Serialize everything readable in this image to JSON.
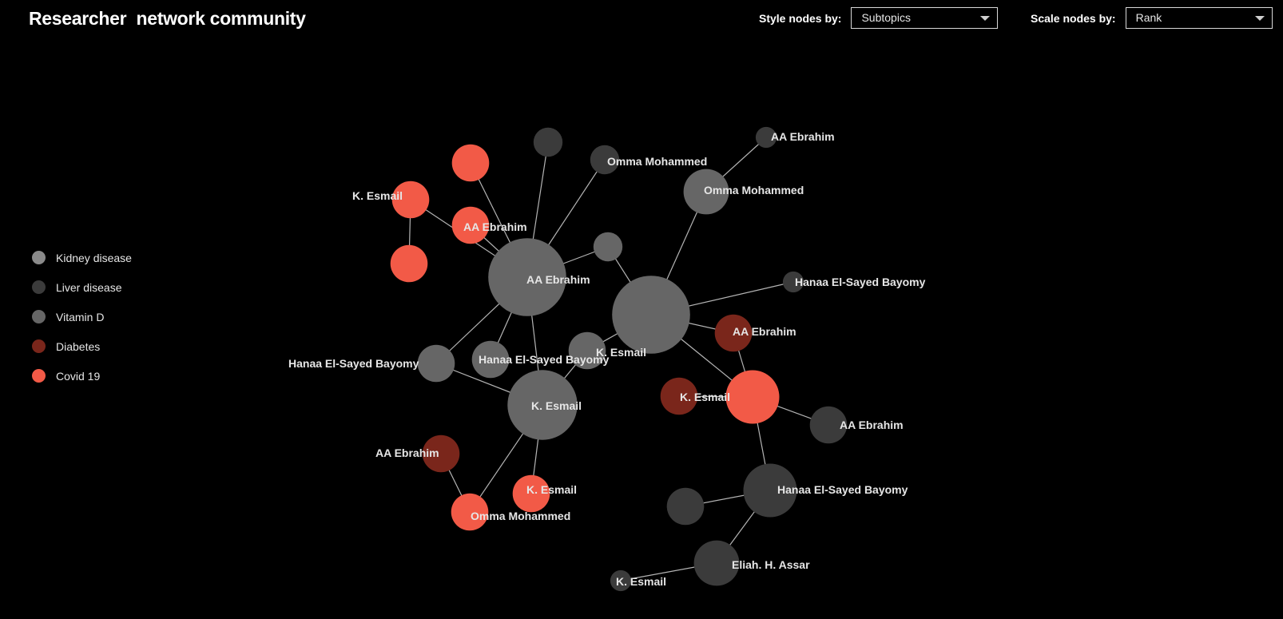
{
  "title": "Researcher  network community",
  "controls": {
    "style": {
      "label": "Style nodes by:",
      "value": "Subtopics"
    },
    "scale": {
      "label": "Scale nodes by:",
      "value": "Rank"
    }
  },
  "colors": {
    "kidney": "#8a8a8a",
    "liver": "#3b3b3b",
    "vitamin": "#666666",
    "diabetes": "#7a261b",
    "covid": "#f25a47",
    "edge": "#c8c8c8"
  },
  "legend": [
    {
      "label": "Kidney disease",
      "color": "#8a8a8a"
    },
    {
      "label": "Liver disease",
      "color": "#3b3b3b"
    },
    {
      "label": "Vitamin D",
      "color": "#666666"
    },
    {
      "label": "Diabetes",
      "color": "#7a261b"
    },
    {
      "label": "Covid 19",
      "color": "#f25a47"
    }
  ],
  "nodes": [
    {
      "id": "n0",
      "label": "",
      "topic": "liver",
      "rank": 2
    },
    {
      "id": "n1",
      "label": "Omma Mohammed",
      "topic": "liver",
      "rank": 2
    },
    {
      "id": "n2",
      "label": "AA Ebrahim",
      "topic": "liver",
      "rank": 1
    },
    {
      "id": "n3",
      "label": "",
      "topic": "covid",
      "rank": 3
    },
    {
      "id": "n4",
      "label": "K. Esmail",
      "topic": "covid",
      "rank": 3
    },
    {
      "id": "n5",
      "label": "AA Ebrahim",
      "topic": "covid",
      "rank": 3
    },
    {
      "id": "n6",
      "label": "",
      "topic": "covid",
      "rank": 3
    },
    {
      "id": "n7",
      "label": "Omma Mohammed",
      "topic": "vitamin",
      "rank": 4
    },
    {
      "id": "n8",
      "label": "",
      "topic": "vitamin",
      "rank": 2
    },
    {
      "id": "n9",
      "label": "AA Ebrahim",
      "topic": "vitamin",
      "rank": 8
    },
    {
      "id": "n10",
      "label": "",
      "topic": "vitamin",
      "rank": 8
    },
    {
      "id": "n11",
      "label": "Hanaa El-Sayed Bayomy",
      "topic": "liver",
      "rank": 1
    },
    {
      "id": "n12",
      "label": "AA Ebrahim",
      "topic": "diabetes",
      "rank": 3
    },
    {
      "id": "n13",
      "label": "Hanaa El-Sayed Bayomy",
      "topic": "vitamin",
      "rank": 3
    },
    {
      "id": "n14",
      "label": "Hanaa El-Sayed Bayomy",
      "topic": "vitamin",
      "rank": 3
    },
    {
      "id": "n15",
      "label": "K. Esmail",
      "topic": "vitamin",
      "rank": 3
    },
    {
      "id": "n16",
      "label": "K. Esmail",
      "topic": "vitamin",
      "rank": 7
    },
    {
      "id": "n17",
      "label": "K. Esmail",
      "topic": "diabetes",
      "rank": 3
    },
    {
      "id": "n18",
      "label": "",
      "topic": "covid",
      "rank": 5
    },
    {
      "id": "n19",
      "label": "AA Ebrahim",
      "topic": "liver",
      "rank": 3
    },
    {
      "id": "n20",
      "label": "AA Ebrahim",
      "topic": "diabetes",
      "rank": 3
    },
    {
      "id": "n21",
      "label": "K. Esmail",
      "topic": "covid",
      "rank": 3
    },
    {
      "id": "n22",
      "label": "Omma Mohammed",
      "topic": "covid",
      "rank": 3
    },
    {
      "id": "n23",
      "label": "Hanaa El-Sayed Bayomy",
      "topic": "liver",
      "rank": 5
    },
    {
      "id": "n24",
      "label": "",
      "topic": "liver",
      "rank": 3
    },
    {
      "id": "n25",
      "label": "Eliah. H. Assar",
      "topic": "liver",
      "rank": 4
    },
    {
      "id": "n26",
      "label": "K. Esmail",
      "topic": "liver",
      "rank": 1
    }
  ],
  "edges": [
    [
      "n9",
      "n0"
    ],
    [
      "n9",
      "n1"
    ],
    [
      "n9",
      "n3"
    ],
    [
      "n9",
      "n5"
    ],
    [
      "n9",
      "n4"
    ],
    [
      "n4",
      "n6"
    ],
    [
      "n9",
      "n13"
    ],
    [
      "n9",
      "n14"
    ],
    [
      "n9",
      "n16"
    ],
    [
      "n9",
      "n8"
    ],
    [
      "n8",
      "n10"
    ],
    [
      "n10",
      "n7"
    ],
    [
      "n7",
      "n2"
    ],
    [
      "n10",
      "n11"
    ],
    [
      "n10",
      "n12"
    ],
    [
      "n10",
      "n18"
    ],
    [
      "n10",
      "n15"
    ],
    [
      "n13",
      "n16"
    ],
    [
      "n15",
      "n16"
    ],
    [
      "n16",
      "n22"
    ],
    [
      "n16",
      "n21"
    ],
    [
      "n20",
      "n22"
    ],
    [
      "n12",
      "n18"
    ],
    [
      "n18",
      "n19"
    ],
    [
      "n18",
      "n23"
    ],
    [
      "n23",
      "n24"
    ],
    [
      "n23",
      "n25"
    ],
    [
      "n25",
      "n26"
    ],
    [
      "n17",
      "n18"
    ]
  ]
}
